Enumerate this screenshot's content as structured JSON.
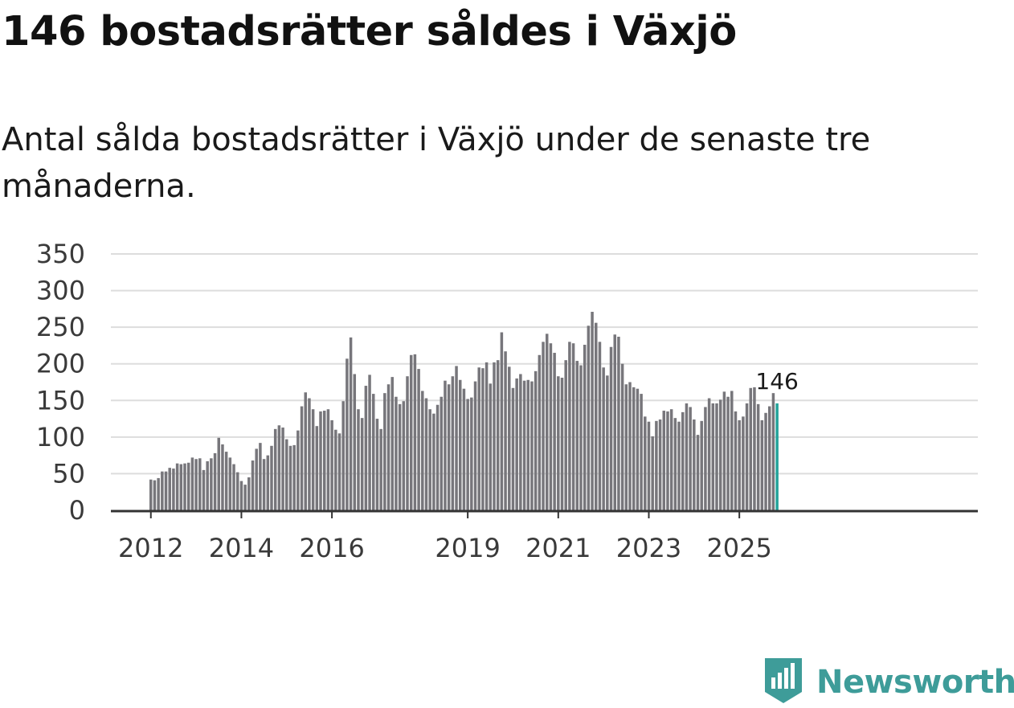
{
  "title": "146 bostadsrätter såldes i Växjö",
  "subtitle": "Antal sålda bostadsrätter i Växjö under de senaste tre månaderna.",
  "colors": {
    "bar": "#77767b",
    "highlight": "#22a39a",
    "grid": "#dddddd",
    "axis": "#333333",
    "brand": "#3e9c99"
  },
  "logo": {
    "text": "Newsworthy",
    "icon": "newsworthy-chart-icon"
  },
  "chart_data": {
    "type": "bar",
    "title": "146 bostadsrätter såldes i Växjö",
    "xlabel": "",
    "ylabel": "",
    "ylim": [
      0,
      350
    ],
    "yticks": [
      0,
      50,
      100,
      150,
      200,
      250,
      300,
      350
    ],
    "xtick_labels": [
      "2012",
      "2014",
      "2016",
      "2019",
      "2021",
      "2023",
      "2025"
    ],
    "start": "2012-01",
    "end": "2025-10",
    "grid": true,
    "highlight_last": true,
    "last_label": "146",
    "values": [
      42,
      41,
      44,
      53,
      53,
      58,
      57,
      64,
      63,
      64,
      65,
      72,
      70,
      71,
      55,
      67,
      71,
      78,
      99,
      90,
      80,
      72,
      63,
      52,
      40,
      35,
      45,
      68,
      84,
      92,
      70,
      75,
      88,
      111,
      116,
      113,
      97,
      88,
      89,
      109,
      142,
      161,
      153,
      138,
      115,
      135,
      136,
      138,
      123,
      110,
      105,
      149,
      207,
      236,
      186,
      138,
      126,
      170,
      185,
      159,
      125,
      111,
      160,
      172,
      182,
      155,
      145,
      149,
      183,
      212,
      213,
      193,
      163,
      153,
      138,
      132,
      144,
      155,
      177,
      172,
      183,
      197,
      178,
      166,
      152,
      154,
      176,
      195,
      194,
      202,
      173,
      202,
      205,
      243,
      217,
      196,
      167,
      180,
      186,
      177,
      178,
      176,
      190,
      212,
      230,
      241,
      228,
      215,
      183,
      181,
      205,
      230,
      228,
      204,
      198,
      226,
      252,
      271,
      256,
      230,
      195,
      184,
      223,
      240,
      237,
      200,
      172,
      175,
      168,
      166,
      159,
      128,
      121,
      101,
      122,
      124,
      136,
      135,
      138,
      126,
      121,
      134,
      146,
      141,
      124,
      103,
      122,
      141,
      153,
      146,
      146,
      151,
      162,
      155,
      163,
      135,
      123,
      128,
      146,
      167,
      168,
      145,
      123,
      133,
      142,
      160,
      146
    ]
  }
}
